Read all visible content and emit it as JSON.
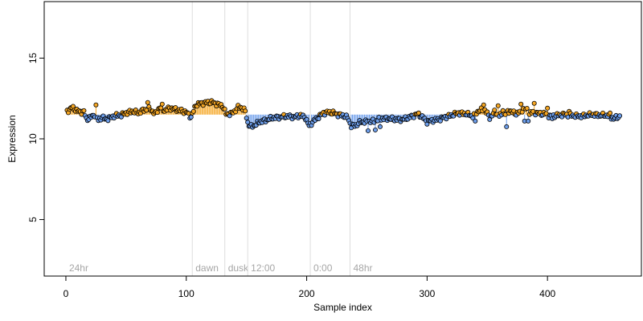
{
  "chart_data": {
    "type": "scatter",
    "xlabel": "Sample index",
    "ylabel": "Expression",
    "xlim": [
      -18,
      478
    ],
    "ylim": [
      1.5,
      18.5
    ],
    "baseline": 11.5,
    "x_ticks": [
      0,
      100,
      200,
      300,
      400
    ],
    "y_ticks": [
      5,
      10,
      15
    ],
    "colors": {
      "above": "#f5a623",
      "below": "#6d9eeb",
      "point_edge": "#000000",
      "vline": "#dddddd",
      "vtext": "#a6a6a6"
    },
    "vlines": [
      {
        "x": 0,
        "label": "24hr"
      },
      {
        "x": 105,
        "label": "dawn"
      },
      {
        "x": 132,
        "label": "dusk"
      },
      {
        "x": 151,
        "label": "12:00"
      },
      {
        "x": 203,
        "label": "0:00"
      },
      {
        "x": 236,
        "label": "48hr"
      }
    ],
    "anchors": [
      [
        1,
        11.7
      ],
      [
        5,
        11.95
      ],
      [
        8,
        11.8
      ],
      [
        12,
        11.65
      ],
      [
        15,
        11.7
      ],
      [
        17,
        11.2
      ],
      [
        20,
        11.3
      ],
      [
        24,
        11.5
      ],
      [
        27,
        11.15
      ],
      [
        30,
        11.35
      ],
      [
        33,
        11.2
      ],
      [
        37,
        11.3
      ],
      [
        41,
        11.45
      ],
      [
        46,
        11.45
      ],
      [
        50,
        11.6
      ],
      [
        55,
        11.7
      ],
      [
        60,
        11.6
      ],
      [
        65,
        11.8
      ],
      [
        70,
        11.85
      ],
      [
        74,
        11.55
      ],
      [
        78,
        11.95
      ],
      [
        82,
        11.75
      ],
      [
        86,
        11.9
      ],
      [
        90,
        11.85
      ],
      [
        95,
        11.75
      ],
      [
        100,
        11.65
      ],
      [
        104,
        11.35
      ],
      [
        108,
        12.1
      ],
      [
        112,
        12.2
      ],
      [
        117,
        12.25
      ],
      [
        122,
        12.25
      ],
      [
        126,
        12.15
      ],
      [
        130,
        12.05
      ],
      [
        133,
        11.55
      ],
      [
        137,
        11.55
      ],
      [
        140,
        11.7
      ],
      [
        143,
        11.95
      ],
      [
        146,
        11.95
      ],
      [
        149,
        11.7
      ],
      [
        151,
        11.0
      ],
      [
        153,
        10.75
      ],
      [
        157,
        10.85
      ],
      [
        161,
        11.05
      ],
      [
        166,
        11.15
      ],
      [
        172,
        11.3
      ],
      [
        178,
        11.35
      ],
      [
        184,
        11.4
      ],
      [
        190,
        11.35
      ],
      [
        195,
        11.45
      ],
      [
        199,
        11.3
      ],
      [
        202,
        10.8
      ],
      [
        205,
        11.05
      ],
      [
        209,
        11.3
      ],
      [
        214,
        11.6
      ],
      [
        218,
        11.65
      ],
      [
        222,
        11.6
      ],
      [
        226,
        11.5
      ],
      [
        230,
        11.45
      ],
      [
        234,
        11.3
      ],
      [
        237,
        10.8
      ],
      [
        241,
        10.85
      ],
      [
        245,
        11.05
      ],
      [
        250,
        11.05
      ],
      [
        256,
        11.1
      ],
      [
        262,
        11.25
      ],
      [
        268,
        11.25
      ],
      [
        274,
        11.2
      ],
      [
        280,
        11.2
      ],
      [
        286,
        11.35
      ],
      [
        292,
        11.55
      ],
      [
        296,
        11.35
      ],
      [
        300,
        11.05
      ],
      [
        305,
        11.15
      ],
      [
        310,
        11.2
      ],
      [
        315,
        11.35
      ],
      [
        320,
        11.45
      ],
      [
        326,
        11.6
      ],
      [
        332,
        11.55
      ],
      [
        338,
        11.4
      ],
      [
        343,
        11.75
      ],
      [
        348,
        11.8
      ],
      [
        352,
        11.3
      ],
      [
        356,
        11.65
      ],
      [
        360,
        11.45
      ],
      [
        364,
        11.5
      ],
      [
        369,
        11.75
      ],
      [
        373,
        11.55
      ],
      [
        377,
        11.65
      ],
      [
        381,
        11.95
      ],
      [
        385,
        11.6
      ],
      [
        389,
        11.65
      ],
      [
        394,
        11.55
      ],
      [
        398,
        11.55
      ],
      [
        402,
        11.4
      ],
      [
        408,
        11.45
      ],
      [
        414,
        11.5
      ],
      [
        420,
        11.45
      ],
      [
        426,
        11.4
      ],
      [
        432,
        11.45
      ],
      [
        438,
        11.5
      ],
      [
        444,
        11.45
      ],
      [
        450,
        11.45
      ],
      [
        455,
        11.25
      ],
      [
        460,
        11.4
      ]
    ],
    "spikes": [
      [
        25,
        12.1
      ],
      [
        68,
        12.25
      ],
      [
        80,
        12.15
      ],
      [
        251,
        10.5
      ],
      [
        257,
        10.55
      ],
      [
        261,
        10.75
      ],
      [
        340,
        11.1
      ],
      [
        347,
        12.1
      ],
      [
        359,
        12.05
      ],
      [
        363,
        11.75
      ],
      [
        366,
        10.75
      ],
      [
        378,
        12.15
      ],
      [
        381,
        11.1
      ],
      [
        384,
        11.1
      ],
      [
        389,
        12.2
      ],
      [
        400,
        11.9
      ],
      [
        404,
        11.25
      ],
      [
        418,
        11.7
      ],
      [
        452,
        11.6
      ]
    ],
    "n_points": 460
  }
}
